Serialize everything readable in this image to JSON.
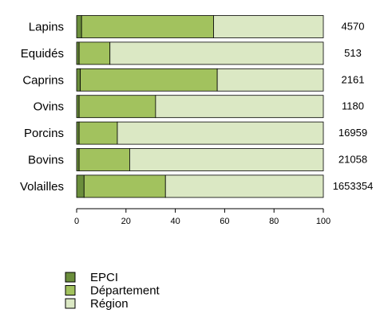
{
  "chart_data": {
    "type": "bar",
    "orientation": "horizontal",
    "stacked": true,
    "categories": [
      "Lapins",
      "Equidés",
      "Caprins",
      "Ovins",
      "Porcins",
      "Bovins",
      "Volailles"
    ],
    "counts": [
      "4570",
      "513",
      "2161",
      "1180",
      "16959",
      "21058",
      "1653354"
    ],
    "series": [
      {
        "name": "EPCI",
        "color": "#6b8e3c",
        "values": [
          2,
          1,
          1.5,
          1,
          1,
          1,
          3
        ]
      },
      {
        "name": "Département",
        "color": "#a2c25e",
        "values": [
          53.5,
          12.5,
          55.5,
          31,
          15.5,
          20.5,
          33
        ]
      },
      {
        "name": "Région",
        "color": "#dbe8c4",
        "values": [
          44.5,
          86.5,
          43,
          68,
          83.5,
          78.5,
          64
        ]
      }
    ],
    "xlim": [
      0,
      100
    ],
    "xticks": [
      0,
      20,
      40,
      60,
      80,
      100
    ],
    "legend_position": "bottom-left"
  }
}
